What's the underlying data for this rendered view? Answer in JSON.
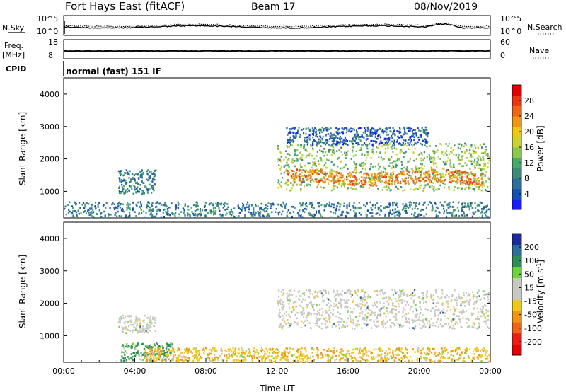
{
  "header": {
    "station": "Fort Hays East (fitACF)",
    "beam": "Beam 17",
    "date": "08/Nov/2019"
  },
  "summary_panels": {
    "nsky": {
      "label": "N.Sky",
      "ticks": [
        "10^5",
        "10^0"
      ]
    },
    "nsearch": {
      "label": "N.Search",
      "ticks": [
        "10^5",
        "10^0"
      ]
    },
    "freq": {
      "label1": "Freq.",
      "label2": "[MHz]",
      "ticks": [
        "18",
        "8"
      ]
    },
    "nave": {
      "label": "Nave",
      "ticks": [
        "60",
        "0"
      ]
    },
    "cpid": {
      "label": "CPID",
      "text": "normal (fast) 151 IF"
    }
  },
  "chart_data": [
    {
      "type": "heatmap",
      "name": "power",
      "ylabel": "Slant Range [km]",
      "yticks": [
        "4000",
        "3000",
        "2000",
        "1000"
      ],
      "ytick_values": [
        4000,
        3000,
        2000,
        1000
      ],
      "ylim": [
        180,
        4500
      ],
      "xlim": [
        0,
        24
      ],
      "colorbar": {
        "label": "Power [dB]",
        "ticks": [
          "28",
          "24",
          "20",
          "16",
          "12",
          "8",
          "4"
        ],
        "tick_values": [
          28,
          24,
          20,
          16,
          12,
          8,
          4
        ],
        "range": [
          0,
          32
        ],
        "colors": [
          "#1a1aff",
          "#1450b4",
          "#2f6e9c",
          "#3d8a7a",
          "#4aa86b",
          "#8cc850",
          "#c8d232",
          "#f0c814",
          "#f09614",
          "#f06414",
          "#ee3214",
          "#e60000"
        ]
      },
      "regions": [
        {
          "t": [
            3.05,
            5.15
          ],
          "r": [
            950,
            1700
          ],
          "level": 8
        },
        {
          "t": [
            12.0,
            24.0
          ],
          "r": [
            1050,
            2500
          ],
          "level": 14
        },
        {
          "t": [
            12.5,
            23.5
          ],
          "r": [
            1250,
            1650
          ],
          "level": 24
        },
        {
          "t": [
            0.0,
            24.0
          ],
          "r": [
            180,
            700
          ],
          "level": 8
        },
        {
          "t": [
            12.5,
            20.5
          ],
          "r": [
            2450,
            3000
          ],
          "level": 6
        }
      ]
    },
    {
      "type": "heatmap",
      "name": "velocity",
      "ylabel": "Slant Range [km]",
      "yticks": [
        "4000",
        "3000",
        "2000",
        "1000"
      ],
      "ytick_values": [
        4000,
        3000,
        2000,
        1000
      ],
      "ylim": [
        180,
        4500
      ],
      "xlim": [
        0,
        24
      ],
      "xlabel": "Time UT",
      "xticks": [
        "00:00",
        "04:00",
        "08:00",
        "12:00",
        "16:00",
        "20:00",
        "00:00"
      ],
      "xtick_values": [
        0,
        4,
        8,
        12,
        16,
        20,
        24
      ],
      "colorbar": {
        "label": "Velocity [m s",
        "label_sup": "-1",
        "ticks": [
          "200",
          "100",
          "50",
          "15",
          "-15",
          "-50",
          "-100",
          "-200"
        ],
        "colors": [
          "#1a2aa0",
          "#2e6e9c",
          "#2f8c58",
          "#6ed23c",
          "#c8c8c0",
          "#c8c8c0",
          "#f0c814",
          "#f09614",
          "#f06414",
          "#ee1a14",
          "#e60000"
        ]
      },
      "regions": [
        {
          "t": [
            3.05,
            5.15
          ],
          "r": [
            1100,
            1650
          ],
          "level": "~0"
        },
        {
          "t": [
            12.0,
            24.0
          ],
          "r": [
            1250,
            2450
          ],
          "level": "~0"
        },
        {
          "t": [
            3.2,
            6.1
          ],
          "r": [
            250,
            800
          ],
          "level": "+50"
        },
        {
          "t": [
            4.5,
            24.0
          ],
          "r": [
            180,
            650
          ],
          "level": "-50"
        }
      ]
    }
  ]
}
